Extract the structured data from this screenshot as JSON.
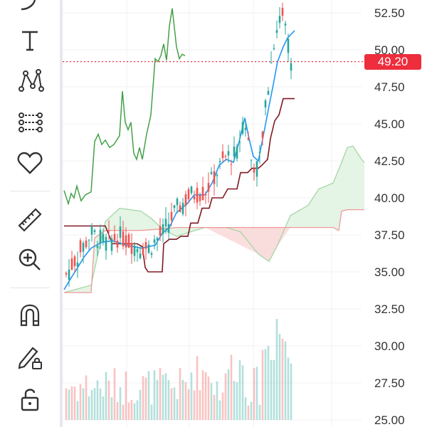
{
  "toolbar": {
    "tools": [
      {
        "name": "brush-icon"
      },
      {
        "name": "text-icon"
      },
      {
        "name": "pattern-icon"
      },
      {
        "name": "prediction-icon"
      },
      {
        "name": "favorites-icon"
      },
      {
        "name": "ruler-icon"
      },
      {
        "name": "zoom-in-icon"
      },
      {
        "name": "magnet-icon"
      },
      {
        "name": "lock-drawing-icon"
      },
      {
        "name": "unlock-icon"
      }
    ]
  },
  "price_scale": {
    "ticks": [
      "52.50",
      "50.00",
      "47.50",
      "45.00",
      "42.50",
      "40.00",
      "37.50",
      "35.00",
      "32.50",
      "30.00",
      "27.50",
      "25.00"
    ]
  },
  "last_price": {
    "label": "49.20",
    "color": "#ee2d3d"
  },
  "colors": {
    "up": "#26a69a",
    "down": "#ef5350",
    "conversion_line": "#2196f3",
    "base_line": "#801922",
    "lagging_span": "#43a047",
    "cloud_bull": "#a5d6a7",
    "cloud_bear": "#ef9a9a"
  },
  "chart_data": {
    "type": "candlestick",
    "y_range": [
      25.0,
      53.5
    ],
    "indicator": "Ichimoku Cloud",
    "last_price": 49.2
  }
}
